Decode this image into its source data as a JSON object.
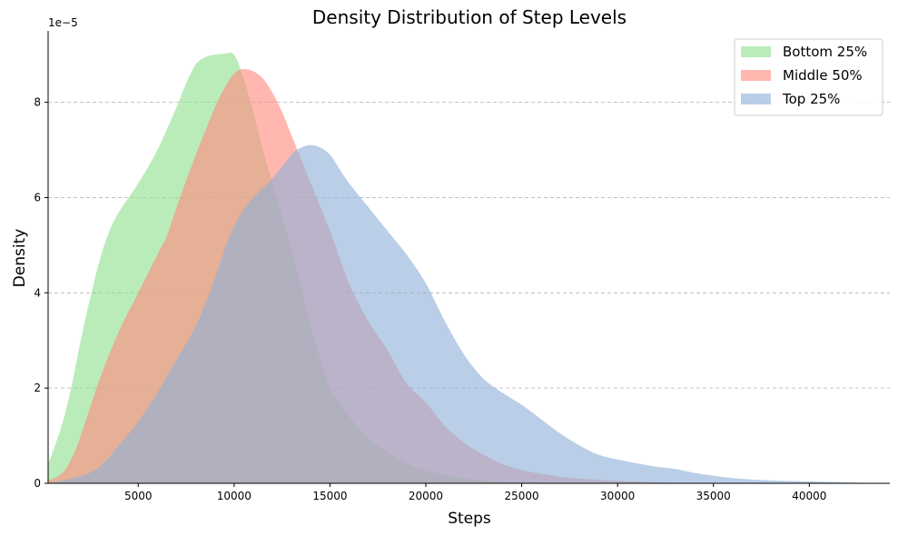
{
  "chart_data": {
    "type": "area",
    "title": "Density Distribution of Step Levels",
    "xlabel": "Steps",
    "ylabel": "Density",
    "y_scale_label": "1e−5",
    "xlim": [
      300,
      44200
    ],
    "ylim": [
      0,
      9.5
    ],
    "xticks": [
      5000,
      10000,
      15000,
      20000,
      25000,
      30000,
      35000,
      40000
    ],
    "yticks": [
      0,
      2,
      4,
      6,
      8
    ],
    "grid": "y-dashed",
    "legend_position": "top-right",
    "series": [
      {
        "name": "Bottom 25%",
        "color": "#90e090",
        "x": [
          300,
          1000,
          1500,
          2000,
          2500,
          3000,
          3500,
          4000,
          5000,
          6000,
          7000,
          7500,
          8000,
          8500,
          9000,
          9500,
          10000,
          10500,
          11000,
          11500,
          12000,
          12500,
          13000,
          13500,
          14000,
          14500,
          15000,
          15500,
          16000,
          17000,
          18000,
          19000,
          20000,
          21000,
          22000,
          23000,
          24000,
          25000,
          27000,
          29000
        ],
        "y": [
          0.4,
          1.2,
          2.0,
          3.0,
          3.9,
          4.7,
          5.3,
          5.7,
          6.3,
          7.0,
          7.9,
          8.4,
          8.8,
          8.95,
          9.0,
          9.02,
          9.0,
          8.5,
          7.8,
          7.0,
          6.3,
          5.6,
          4.9,
          4.1,
          3.3,
          2.6,
          2.0,
          1.7,
          1.4,
          0.95,
          0.65,
          0.42,
          0.27,
          0.17,
          0.1,
          0.06,
          0.03,
          0.02,
          0.01,
          0.0
        ]
      },
      {
        "name": "Middle 50%",
        "color": "#ff8a80",
        "x": [
          300,
          1000,
          1500,
          2000,
          3000,
          4000,
          5000,
          6000,
          6500,
          7000,
          8000,
          8500,
          9000,
          9500,
          10000,
          10500,
          11000,
          11500,
          12000,
          12500,
          13000,
          14000,
          15000,
          16000,
          17000,
          18000,
          19000,
          20000,
          21000,
          22000,
          23000,
          24000,
          25000,
          26000,
          27000,
          28000,
          30000,
          32000,
          34000
        ],
        "y": [
          0.05,
          0.2,
          0.5,
          1.0,
          2.2,
          3.2,
          4.0,
          4.8,
          5.2,
          5.8,
          6.9,
          7.4,
          7.9,
          8.3,
          8.6,
          8.7,
          8.65,
          8.5,
          8.2,
          7.8,
          7.3,
          6.3,
          5.3,
          4.2,
          3.4,
          2.8,
          2.1,
          1.7,
          1.2,
          0.85,
          0.6,
          0.4,
          0.28,
          0.2,
          0.14,
          0.1,
          0.05,
          0.02,
          0.0
        ]
      },
      {
        "name": "Top 25%",
        "color": "#8fb0d8",
        "x": [
          300,
          2000,
          3000,
          4000,
          5000,
          6000,
          7000,
          8000,
          9000,
          9500,
          10000,
          10500,
          11000,
          12000,
          13000,
          13500,
          14000,
          14500,
          15000,
          15500,
          16000,
          17000,
          18000,
          19000,
          20000,
          21000,
          22000,
          23000,
          24000,
          25000,
          26000,
          27000,
          28000,
          29000,
          30000,
          31000,
          32000,
          33000,
          34000,
          35000,
          36000,
          37000,
          38000,
          40000,
          42000,
          44000
        ],
        "y": [
          0.0,
          0.15,
          0.35,
          0.8,
          1.3,
          1.9,
          2.6,
          3.3,
          4.3,
          4.9,
          5.4,
          5.75,
          6.0,
          6.4,
          6.9,
          7.05,
          7.1,
          7.05,
          6.9,
          6.6,
          6.3,
          5.8,
          5.3,
          4.8,
          4.2,
          3.4,
          2.7,
          2.2,
          1.9,
          1.65,
          1.35,
          1.05,
          0.8,
          0.6,
          0.5,
          0.42,
          0.35,
          0.3,
          0.22,
          0.16,
          0.11,
          0.08,
          0.06,
          0.04,
          0.02,
          0.0
        ]
      }
    ]
  }
}
